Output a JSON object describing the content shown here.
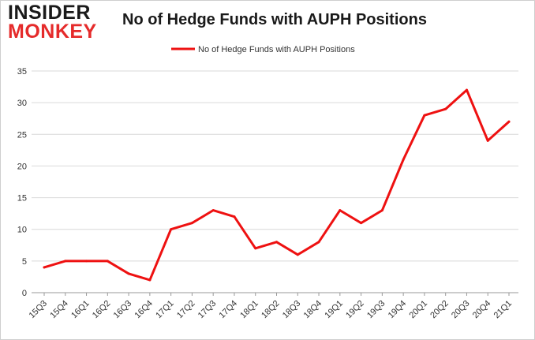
{
  "logo": {
    "line1": "INSIDER",
    "line2": "MONKEY"
  },
  "colors": {
    "series": "#ee1111",
    "grid": "#d9d9d9",
    "axis": "#999999",
    "logo_accent": "#e52b2b"
  },
  "chart_data": {
    "type": "line",
    "title": "No of Hedge Funds with AUPH Positions",
    "xlabel": "",
    "ylabel": "",
    "ylim": [
      0,
      35
    ],
    "yticks": [
      0,
      5,
      10,
      15,
      20,
      25,
      30,
      35
    ],
    "grid": true,
    "legend_position": "top-center",
    "categories": [
      "15Q3",
      "15Q4",
      "16Q1",
      "16Q2",
      "16Q3",
      "16Q4",
      "17Q1",
      "17Q2",
      "17Q3",
      "17Q4",
      "18Q1",
      "18Q2",
      "18Q3",
      "18Q4",
      "19Q1",
      "19Q2",
      "19Q3",
      "19Q4",
      "20Q1",
      "20Q2",
      "20Q3",
      "20Q4",
      "21Q1"
    ],
    "series": [
      {
        "name": "No of Hedge Funds with AUPH Positions",
        "values": [
          4,
          5,
          5,
          5,
          3,
          2,
          10,
          11,
          13,
          12,
          7,
          8,
          6,
          8,
          13,
          11,
          13,
          21,
          28,
          29,
          32,
          24,
          27
        ]
      }
    ]
  }
}
